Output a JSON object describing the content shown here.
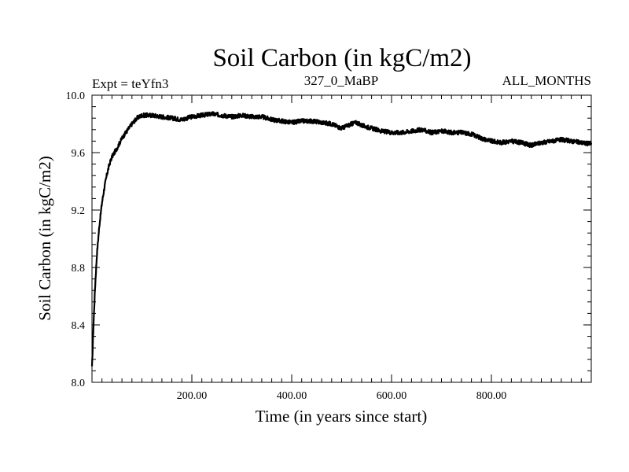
{
  "chart_data": {
    "type": "line",
    "title": "Soil Carbon (in kgC/m2)",
    "subtitle_left": "Expt = teYfn3",
    "subtitle_center": "327_0_MaBP",
    "subtitle_right": "ALL_MONTHS",
    "xlabel": "Time (in years since start)",
    "ylabel": "Soil Carbon (in kgC/m2)",
    "xlim": [
      0,
      1000
    ],
    "ylim": [
      8.0,
      10.0
    ],
    "x_ticks": [
      {
        "value": 200,
        "label": "200.00"
      },
      {
        "value": 400,
        "label": "400.00"
      },
      {
        "value": 600,
        "label": "600.00"
      },
      {
        "value": 800,
        "label": "800.00"
      }
    ],
    "y_ticks": [
      {
        "value": 8.0,
        "label": "8.0"
      },
      {
        "value": 8.4,
        "label": "8.4"
      },
      {
        "value": 8.8,
        "label": "8.8"
      },
      {
        "value": 9.2,
        "label": "9.2"
      },
      {
        "value": 9.6,
        "label": "9.6"
      },
      {
        "value": 10.0,
        "label": "10.0"
      }
    ],
    "series": [
      {
        "name": "soil_carbon",
        "color": "#000000",
        "x": [
          0,
          3,
          6,
          10,
          15,
          20,
          25,
          30,
          35,
          40,
          50,
          60,
          70,
          80,
          90,
          100,
          120,
          140,
          160,
          180,
          200,
          220,
          240,
          260,
          280,
          300,
          320,
          340,
          360,
          380,
          400,
          420,
          440,
          460,
          480,
          500,
          520,
          530,
          540,
          560,
          580,
          600,
          620,
          640,
          660,
          680,
          700,
          720,
          740,
          760,
          780,
          800,
          820,
          840,
          860,
          880,
          900,
          920,
          940,
          960,
          980,
          1000
        ],
        "values": [
          8.1,
          8.4,
          8.65,
          8.9,
          9.1,
          9.25,
          9.36,
          9.45,
          9.52,
          9.57,
          9.63,
          9.7,
          9.75,
          9.8,
          9.84,
          9.86,
          9.86,
          9.85,
          9.84,
          9.83,
          9.85,
          9.86,
          9.87,
          9.86,
          9.85,
          9.86,
          9.85,
          9.85,
          9.83,
          9.82,
          9.81,
          9.82,
          9.82,
          9.81,
          9.8,
          9.77,
          9.8,
          9.81,
          9.79,
          9.77,
          9.75,
          9.74,
          9.74,
          9.75,
          9.76,
          9.74,
          9.75,
          9.74,
          9.74,
          9.73,
          9.7,
          9.68,
          9.67,
          9.68,
          9.67,
          9.65,
          9.67,
          9.68,
          9.69,
          9.68,
          9.67,
          9.66
        ]
      }
    ]
  }
}
